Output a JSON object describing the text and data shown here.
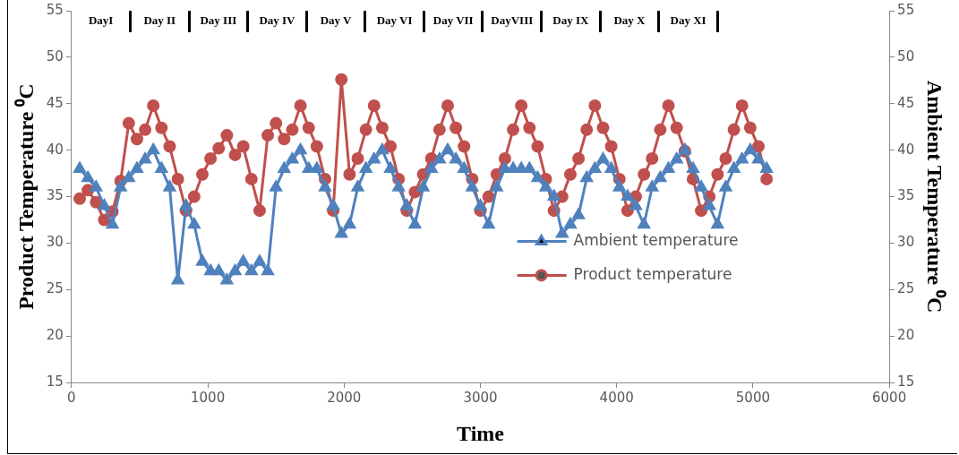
{
  "chart_data": {
    "type": "line",
    "xlabel": "Time",
    "ylabel": "Product Temperature ⁰C",
    "y2label": "Ambient Temperature ⁰C",
    "x": [
      60,
      120,
      180,
      240,
      300,
      360,
      420,
      480,
      540,
      600,
      660,
      720,
      780,
      840,
      900,
      960,
      1020,
      1080,
      1140,
      1200,
      1260,
      1320,
      1380,
      1440,
      1500,
      1560,
      1620,
      1680,
      1740,
      1800,
      1860,
      1920,
      1980,
      2040,
      2100,
      2160,
      2220,
      2280,
      2340,
      2400,
      2460,
      2520,
      2580,
      2640,
      2700,
      2760,
      2820,
      2880,
      2940,
      3000,
      3060,
      3120,
      3180,
      3240,
      3300,
      3360,
      3420,
      3480,
      3540,
      3600,
      3660,
      3720,
      3780,
      3840,
      3900,
      3960,
      4020,
      4080,
      4140,
      4200,
      4260,
      4320,
      4380,
      4440,
      4500,
      4560,
      4620,
      4680,
      4740,
      4800,
      4860,
      4920,
      4980,
      5040,
      5100
    ],
    "series": [
      {
        "name": "Ambient temperature",
        "color": "#4f81bd",
        "marker": "triangle",
        "axis": "y2",
        "values": [
          38,
          37,
          36,
          34,
          32,
          36,
          37,
          38,
          39,
          40,
          38,
          36,
          26,
          34,
          32,
          28,
          27,
          27,
          26,
          27,
          28,
          27,
          28,
          27,
          36,
          38,
          39,
          40,
          38,
          38,
          36,
          34,
          31,
          32,
          36,
          38,
          39,
          40,
          38,
          36,
          34,
          32,
          36,
          38,
          39,
          40,
          39,
          38,
          36,
          34,
          32,
          36,
          38,
          38,
          38,
          38,
          37,
          36,
          35,
          31,
          32,
          33,
          37,
          38,
          39,
          38,
          36,
          35,
          34,
          32,
          36,
          37,
          38,
          39,
          40,
          38,
          36,
          34,
          32,
          36,
          38,
          39,
          40,
          39,
          38
        ]
      },
      {
        "name": "Product temperature",
        "color": "#c0504d",
        "marker": "circle",
        "values": [
          34.8,
          35.7,
          34.4,
          32.5,
          33.4,
          36.7,
          42.9,
          41.2,
          42.2,
          44.8,
          42.4,
          40.4,
          36.9,
          33.5,
          35.0,
          37.4,
          39.1,
          40.2,
          41.6,
          39.5,
          40.4,
          36.9,
          33.5,
          41.6,
          42.9,
          41.2,
          42.2,
          44.8,
          42.4,
          40.4,
          36.9,
          33.5,
          47.6,
          37.4,
          39.1,
          42.2,
          44.8,
          42.4,
          40.4,
          36.9,
          33.5,
          35.5,
          37.4,
          39.1,
          42.2,
          44.8,
          42.4,
          40.4,
          36.9,
          33.5,
          35.0,
          37.4,
          39.1,
          42.2,
          44.8,
          42.4,
          40.4,
          36.9,
          33.5,
          35.0,
          37.4,
          39.1,
          42.2,
          44.8,
          42.4,
          40.4,
          36.9,
          33.5,
          35.0,
          37.4,
          39.1,
          42.2,
          44.8,
          42.4,
          39.9,
          36.9,
          33.5,
          35.0,
          37.4,
          39.1,
          42.2,
          44.8,
          42.4,
          40.4,
          36.9
        ]
      }
    ],
    "xlim": [
      0,
      6000
    ],
    "xticks": [
      0,
      1000,
      2000,
      3000,
      4000,
      5000,
      6000
    ],
    "ylim": [
      15,
      55
    ],
    "yticks": [
      15,
      20,
      25,
      30,
      35,
      40,
      45,
      50,
      55
    ],
    "y2lim": [
      15,
      55
    ],
    "y2ticks": [
      15,
      20,
      25,
      30,
      35,
      40,
      45,
      50,
      55
    ],
    "grid": false,
    "legend": "right",
    "annotations": [
      "DayI",
      "Day II",
      "Day III",
      "Day IV",
      "Day V",
      "Day VI",
      "Day VII",
      "DayVIII",
      "Day IX",
      "Day X",
      "Day XI"
    ]
  }
}
